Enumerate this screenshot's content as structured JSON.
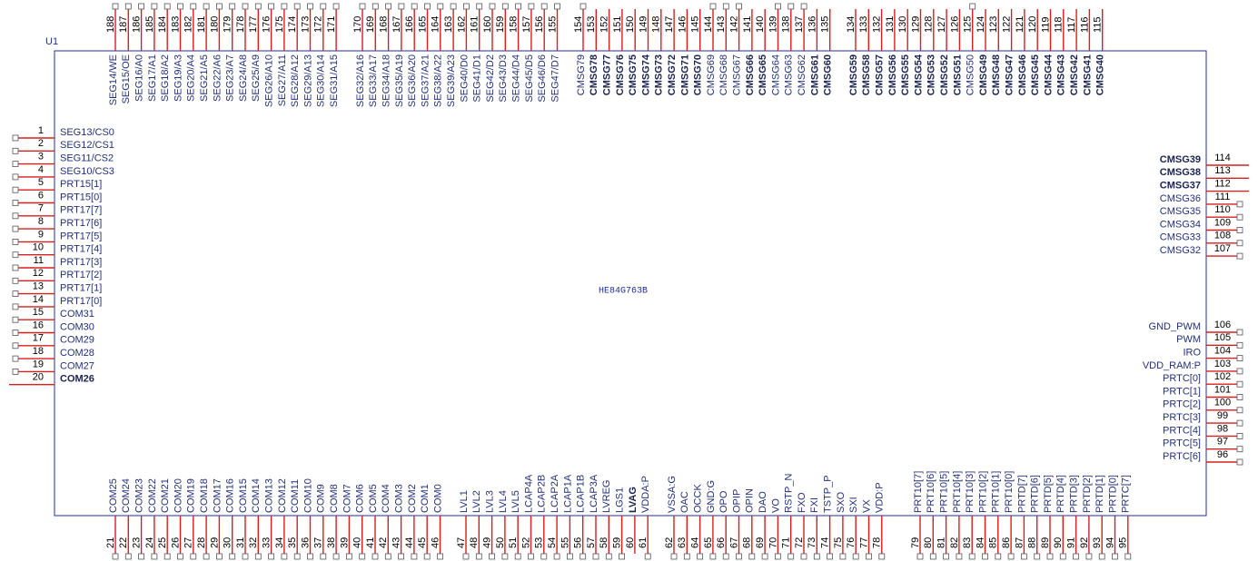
{
  "ref": "U1",
  "part": "HE84G763B",
  "pins": {
    "left": [
      [
        {
          "n": 1,
          "name": "SEG13/CS0"
        },
        {
          "n": 2,
          "name": "SEG12/CS1"
        },
        {
          "n": 3,
          "name": "SEG11/CS2"
        },
        {
          "n": 4,
          "name": "SEG10/CS3"
        },
        {
          "n": 5,
          "name": "PRT15[1]"
        },
        {
          "n": 6,
          "name": "PRT15[0]"
        },
        {
          "n": 7,
          "name": "PRT17[7]"
        },
        {
          "n": 8,
          "name": "PRT17[6]"
        },
        {
          "n": 9,
          "name": "PRT17[5]"
        },
        {
          "n": 10,
          "name": "PRT17[4]"
        },
        {
          "n": 11,
          "name": "PRT17[3]"
        },
        {
          "n": 12,
          "name": "PRT17[2]"
        },
        {
          "n": 13,
          "name": "PRT17[1]"
        },
        {
          "n": 14,
          "name": "PRT17[0]"
        },
        {
          "n": 15,
          "name": "COM31"
        },
        {
          "n": 16,
          "name": "COM30"
        },
        {
          "n": 17,
          "name": "COM29"
        },
        {
          "n": 18,
          "name": "COM28"
        },
        {
          "n": 19,
          "name": "COM27"
        },
        {
          "n": 20,
          "name": "COM26",
          "bold": true
        }
      ]
    ],
    "right": [
      [
        {
          "n": 114,
          "name": "CMSG39",
          "bold": true
        },
        {
          "n": 113,
          "name": "CMSG38",
          "bold": true
        },
        {
          "n": 112,
          "name": "CMSG37",
          "bold": true
        },
        {
          "n": 111,
          "name": "CMSG36"
        },
        {
          "n": 110,
          "name": "CMSG35"
        },
        {
          "n": 109,
          "name": "CMSG34"
        },
        {
          "n": 108,
          "name": "CMSG33"
        },
        {
          "n": 107,
          "name": "CMSG32"
        }
      ],
      [
        {
          "n": 106,
          "name": "GND_PWM"
        },
        {
          "n": 105,
          "name": "PWM"
        },
        {
          "n": 104,
          "name": "IRO"
        },
        {
          "n": 103,
          "name": "VDD_RAM:P"
        },
        {
          "n": 102,
          "name": "PRTC[0]"
        },
        {
          "n": 101,
          "name": "PRTC[1]"
        },
        {
          "n": 100,
          "name": "PRTC[2]"
        },
        {
          "n": 99,
          "name": "PRTC[3]"
        },
        {
          "n": 98,
          "name": "PRTC[4]"
        },
        {
          "n": 97,
          "name": "PRTC[5]"
        },
        {
          "n": 96,
          "name": "PRTC[6]"
        }
      ]
    ],
    "top": [
      [
        {
          "n": 188,
          "name": "SEG14/WE"
        },
        {
          "n": 187,
          "name": "SEG15/OE"
        },
        {
          "n": 186,
          "name": "SEG16/A0"
        },
        {
          "n": 185,
          "name": "SEG17/A1"
        },
        {
          "n": 184,
          "name": "SEG18/A2"
        },
        {
          "n": 183,
          "name": "SEG19/A3"
        },
        {
          "n": 182,
          "name": "SEG20/A4"
        },
        {
          "n": 181,
          "name": "SEG21/A5"
        },
        {
          "n": 180,
          "name": "SEG22/A6"
        },
        {
          "n": 179,
          "name": "SEG23/A7"
        },
        {
          "n": 178,
          "name": "SEG24/A8"
        },
        {
          "n": 177,
          "name": "SEG25/A9"
        },
        {
          "n": 176,
          "name": "SEG26/A10"
        },
        {
          "n": 175,
          "name": "SEG27/A11"
        },
        {
          "n": 174,
          "name": "SEG28/A12"
        },
        {
          "n": 173,
          "name": "SEG29/A13"
        },
        {
          "n": 172,
          "name": "SEG30/A14"
        },
        {
          "n": 171,
          "name": "SEG31/A15"
        }
      ],
      [
        {
          "n": 170,
          "name": "SEG32/A16"
        },
        {
          "n": 169,
          "name": "SEG33/A17"
        },
        {
          "n": 168,
          "name": "SEG34/A18"
        },
        {
          "n": 167,
          "name": "SEG35/A19"
        },
        {
          "n": 166,
          "name": "SEG36/A20"
        },
        {
          "n": 165,
          "name": "SEG37/A21"
        },
        {
          "n": 164,
          "name": "SEG38/A22"
        },
        {
          "n": 163,
          "name": "SEG39/A23"
        },
        {
          "n": 162,
          "name": "SEG40/D0"
        },
        {
          "n": 161,
          "name": "SEG41/D1"
        },
        {
          "n": 160,
          "name": "SEG42/D2"
        },
        {
          "n": 159,
          "name": "SEG43/D3"
        },
        {
          "n": 158,
          "name": "SEG44/D4"
        },
        {
          "n": 157,
          "name": "SEG45/D5"
        },
        {
          "n": 156,
          "name": "SEG46/D6"
        },
        {
          "n": 155,
          "name": "SEG47/D7"
        }
      ],
      [
        {
          "n": 154,
          "name": "CMSG79"
        },
        {
          "n": 153,
          "name": "CMSG78",
          "bold": true
        },
        {
          "n": 152,
          "name": "CMSG77",
          "bold": true
        },
        {
          "n": 151,
          "name": "CMSG76",
          "bold": true
        },
        {
          "n": 150,
          "name": "CMSG75",
          "bold": true
        },
        {
          "n": 149,
          "name": "CMSG74",
          "bold": true
        },
        {
          "n": 148,
          "name": "CMSG73",
          "bold": true
        },
        {
          "n": 147,
          "name": "CMSG72",
          "bold": true
        },
        {
          "n": 146,
          "name": "CMSG71",
          "bold": true
        },
        {
          "n": 145,
          "name": "CMSG70",
          "bold": true
        },
        {
          "n": 144,
          "name": "CMSG69"
        },
        {
          "n": 143,
          "name": "CMSG68"
        },
        {
          "n": 142,
          "name": "CMSG67"
        },
        {
          "n": 141,
          "name": "CMSG66",
          "bold": true
        },
        {
          "n": 140,
          "name": "CMSG65",
          "bold": true
        },
        {
          "n": 139,
          "name": "CMSG64"
        },
        {
          "n": 138,
          "name": "CMSG63"
        },
        {
          "n": 137,
          "name": "CMSG62"
        },
        {
          "n": 136,
          "name": "CMSG61",
          "bold": true
        },
        {
          "n": 135,
          "name": "CMSG60",
          "bold": true
        }
      ],
      [
        {
          "n": 134,
          "name": "CMSG59",
          "bold": true
        },
        {
          "n": 133,
          "name": "CMSG58",
          "bold": true
        },
        {
          "n": 132,
          "name": "CMSG57",
          "bold": true
        },
        {
          "n": 131,
          "name": "CMSG56",
          "bold": true
        },
        {
          "n": 130,
          "name": "CMSG55",
          "bold": true
        },
        {
          "n": 129,
          "name": "CMSG54",
          "bold": true
        },
        {
          "n": 128,
          "name": "CMSG53",
          "bold": true
        },
        {
          "n": 127,
          "name": "CMSG52",
          "bold": true
        },
        {
          "n": 126,
          "name": "CMSG51",
          "bold": true
        },
        {
          "n": 125,
          "name": "CMSG50"
        },
        {
          "n": 124,
          "name": "CMSG49",
          "bold": true
        },
        {
          "n": 123,
          "name": "CMSG48",
          "bold": true
        },
        {
          "n": 122,
          "name": "CMSG47",
          "bold": true
        },
        {
          "n": 121,
          "name": "CMSG46",
          "bold": true
        },
        {
          "n": 120,
          "name": "CMSG45",
          "bold": true
        },
        {
          "n": 119,
          "name": "CMSG44",
          "bold": true
        },
        {
          "n": 118,
          "name": "CMSG43",
          "bold": true
        },
        {
          "n": 117,
          "name": "CMSG42",
          "bold": true
        },
        {
          "n": 116,
          "name": "CMSG41",
          "bold": true
        },
        {
          "n": 115,
          "name": "CMSG40",
          "bold": true
        }
      ]
    ],
    "bottom": [
      [
        {
          "n": 21,
          "name": "COM25"
        },
        {
          "n": 22,
          "name": "COM24"
        },
        {
          "n": 23,
          "name": "COM23"
        },
        {
          "n": 24,
          "name": "COM22"
        },
        {
          "n": 25,
          "name": "COM21"
        },
        {
          "n": 26,
          "name": "COM20"
        },
        {
          "n": 27,
          "name": "COM19"
        },
        {
          "n": 28,
          "name": "COM18"
        },
        {
          "n": 29,
          "name": "COM17"
        },
        {
          "n": 30,
          "name": "COM16"
        },
        {
          "n": 31,
          "name": "COM15"
        },
        {
          "n": 32,
          "name": "COM14"
        },
        {
          "n": 33,
          "name": "COM13"
        },
        {
          "n": 34,
          "name": "COM12"
        },
        {
          "n": 35,
          "name": "COM11"
        },
        {
          "n": 36,
          "name": "COM10"
        },
        {
          "n": 37,
          "name": "COM9"
        },
        {
          "n": 38,
          "name": "COM8"
        },
        {
          "n": 39,
          "name": "COM7"
        },
        {
          "n": 40,
          "name": "COM6"
        },
        {
          "n": 41,
          "name": "COM5"
        },
        {
          "n": 42,
          "name": "COM4"
        },
        {
          "n": 43,
          "name": "COM3"
        },
        {
          "n": 44,
          "name": "COM2"
        },
        {
          "n": 45,
          "name": "COM1"
        },
        {
          "n": 46,
          "name": "COM0"
        }
      ],
      [
        {
          "n": 47,
          "name": "LVL1"
        },
        {
          "n": 48,
          "name": "LVL2"
        },
        {
          "n": 49,
          "name": "LVL3"
        },
        {
          "n": 50,
          "name": "LVL4"
        },
        {
          "n": 51,
          "name": "LVL5"
        },
        {
          "n": 52,
          "name": "LCAP4A"
        },
        {
          "n": 53,
          "name": "LCAP2B"
        },
        {
          "n": 54,
          "name": "LCAP2A"
        },
        {
          "n": 55,
          "name": "LCAP1A"
        },
        {
          "n": 56,
          "name": "LCAP1B"
        },
        {
          "n": 57,
          "name": "LCAP3A"
        },
        {
          "n": 58,
          "name": "LVREG"
        },
        {
          "n": 59,
          "name": "LGS1"
        },
        {
          "n": 60,
          "name": "LVAG",
          "bold": true
        },
        {
          "n": 61,
          "name": "VDDA:P"
        }
      ],
      [
        {
          "n": 62,
          "name": "VSSA:G"
        },
        {
          "n": 63,
          "name": "OAC"
        },
        {
          "n": 64,
          "name": "OCCK"
        },
        {
          "n": 65,
          "name": "GND:G"
        },
        {
          "n": 66,
          "name": "OPO"
        },
        {
          "n": 67,
          "name": "OPIP"
        },
        {
          "n": 68,
          "name": "OPIN"
        },
        {
          "n": 69,
          "name": "DAO"
        },
        {
          "n": 70,
          "name": "VO"
        },
        {
          "n": 71,
          "name": "RSTP_N"
        },
        {
          "n": 72,
          "name": "FXO"
        },
        {
          "n": 73,
          "name": "FXI"
        },
        {
          "n": 74,
          "name": "TSTP_P"
        },
        {
          "n": 75,
          "name": "SXO"
        },
        {
          "n": 76,
          "name": "SXI"
        },
        {
          "n": 77,
          "name": "VX"
        },
        {
          "n": 78,
          "name": "VDD:P"
        }
      ],
      [
        {
          "n": 79,
          "name": "PRT10[7]"
        },
        {
          "n": 80,
          "name": "PRT10[6]"
        },
        {
          "n": 81,
          "name": "PRT10[5]"
        },
        {
          "n": 82,
          "name": "PRT10[4]"
        },
        {
          "n": 83,
          "name": "PRT10[3]"
        },
        {
          "n": 84,
          "name": "PRT10[2]"
        },
        {
          "n": 85,
          "name": "PRT10[1]"
        },
        {
          "n": 86,
          "name": "PRT10[0]"
        },
        {
          "n": 87,
          "name": "PRTD[7]"
        },
        {
          "n": 88,
          "name": "PRTD[6]"
        },
        {
          "n": 89,
          "name": "PRTD[5]"
        },
        {
          "n": 90,
          "name": "PRTD[4]"
        },
        {
          "n": 91,
          "name": "PRTD[3]"
        },
        {
          "n": 92,
          "name": "PRTD[2]"
        },
        {
          "n": 93,
          "name": "PRTD[1]"
        },
        {
          "n": 94,
          "name": "PRTD[0]"
        },
        {
          "n": 95,
          "name": "PRTC[7]"
        }
      ]
    ]
  }
}
